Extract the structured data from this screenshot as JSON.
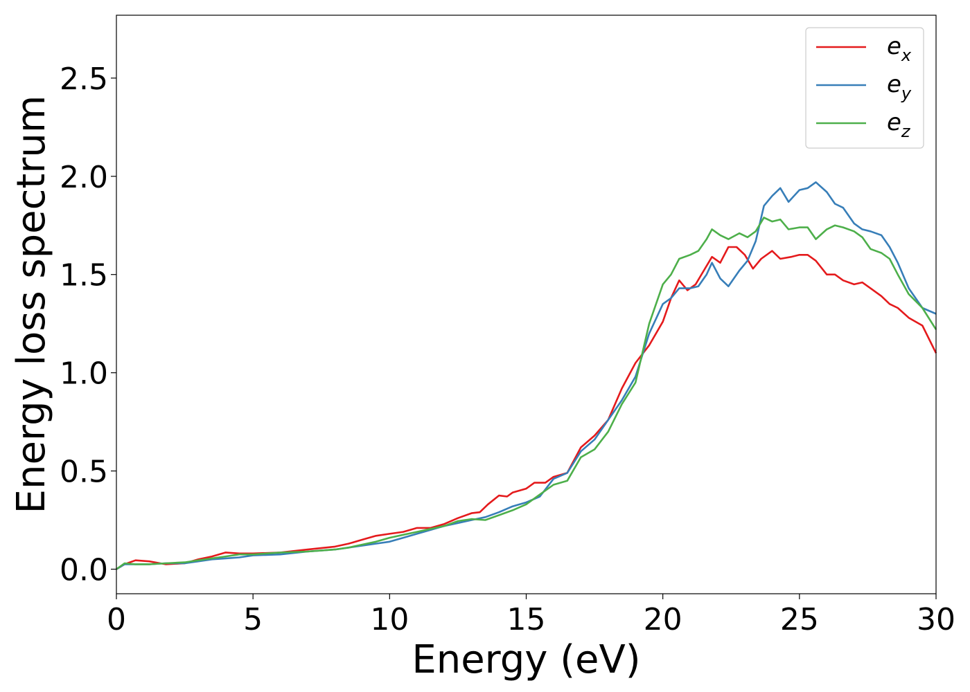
{
  "chart_data": {
    "type": "line",
    "title": "",
    "xlabel": "Energy (eV)",
    "ylabel": "Energy loss spectrum",
    "xlim": [
      0,
      30
    ],
    "ylim": [
      -0.125,
      2.82
    ],
    "xticks": [
      0,
      5,
      10,
      15,
      20,
      25,
      30
    ],
    "xtick_labels": [
      "0",
      "5",
      "10",
      "15",
      "20",
      "25",
      "30"
    ],
    "yticks": [
      0.0,
      0.5,
      1.0,
      1.5,
      2.0,
      2.5
    ],
    "ytick_labels": [
      "0.0",
      "0.5",
      "1.0",
      "1.5",
      "2.0",
      "2.5"
    ],
    "grid": false,
    "legend_position": "top-right",
    "series": [
      {
        "name": "e",
        "subscript": "x",
        "color": "#e41a1c",
        "points": [
          [
            0,
            0
          ],
          [
            0.3,
            0.025
          ],
          [
            0.7,
            0.045
          ],
          [
            1.2,
            0.04
          ],
          [
            1.8,
            0.025
          ],
          [
            2.5,
            0.03
          ],
          [
            3,
            0.05
          ],
          [
            3.5,
            0.065
          ],
          [
            4,
            0.085
          ],
          [
            4.5,
            0.08
          ],
          [
            5,
            0.08
          ],
          [
            6,
            0.085
          ],
          [
            7,
            0.1
          ],
          [
            8,
            0.115
          ],
          [
            8.5,
            0.13
          ],
          [
            9,
            0.15
          ],
          [
            9.5,
            0.17
          ],
          [
            10,
            0.18
          ],
          [
            10.5,
            0.19
          ],
          [
            11,
            0.21
          ],
          [
            11.5,
            0.21
          ],
          [
            12,
            0.23
          ],
          [
            12.5,
            0.26
          ],
          [
            13,
            0.285
          ],
          [
            13.3,
            0.29
          ],
          [
            13.6,
            0.33
          ],
          [
            14,
            0.375
          ],
          [
            14.3,
            0.37
          ],
          [
            14.5,
            0.39
          ],
          [
            15,
            0.41
          ],
          [
            15.3,
            0.44
          ],
          [
            15.7,
            0.44
          ],
          [
            16,
            0.47
          ],
          [
            16.5,
            0.49
          ],
          [
            17,
            0.62
          ],
          [
            17.5,
            0.68
          ],
          [
            18,
            0.76
          ],
          [
            18.5,
            0.92
          ],
          [
            19,
            1.05
          ],
          [
            19.5,
            1.14
          ],
          [
            20,
            1.26
          ],
          [
            20.3,
            1.38
          ],
          [
            20.6,
            1.47
          ],
          [
            20.9,
            1.42
          ],
          [
            21.2,
            1.45
          ],
          [
            21.5,
            1.52
          ],
          [
            21.8,
            1.59
          ],
          [
            22.1,
            1.56
          ],
          [
            22.4,
            1.64
          ],
          [
            22.7,
            1.64
          ],
          [
            23,
            1.6
          ],
          [
            23.3,
            1.53
          ],
          [
            23.6,
            1.58
          ],
          [
            24,
            1.62
          ],
          [
            24.3,
            1.58
          ],
          [
            24.7,
            1.59
          ],
          [
            25,
            1.6
          ],
          [
            25.3,
            1.6
          ],
          [
            25.6,
            1.57
          ],
          [
            26,
            1.5
          ],
          [
            26.3,
            1.5
          ],
          [
            26.6,
            1.47
          ],
          [
            27,
            1.45
          ],
          [
            27.3,
            1.46
          ],
          [
            27.6,
            1.43
          ],
          [
            28,
            1.39
          ],
          [
            28.3,
            1.35
          ],
          [
            28.6,
            1.33
          ],
          [
            29,
            1.28
          ],
          [
            29.5,
            1.24
          ],
          [
            30,
            1.1
          ]
        ]
      },
      {
        "name": "e",
        "subscript": "y",
        "color": "#377eb8",
        "points": [
          [
            0,
            0
          ],
          [
            0.3,
            0.025
          ],
          [
            0.7,
            0.025
          ],
          [
            1.2,
            0.025
          ],
          [
            1.8,
            0.03
          ],
          [
            2.5,
            0.03
          ],
          [
            3,
            0.04
          ],
          [
            3.5,
            0.05
          ],
          [
            4,
            0.055
          ],
          [
            4.5,
            0.06
          ],
          [
            5,
            0.07
          ],
          [
            6,
            0.075
          ],
          [
            7,
            0.09
          ],
          [
            8,
            0.1
          ],
          [
            8.5,
            0.11
          ],
          [
            9,
            0.12
          ],
          [
            9.5,
            0.13
          ],
          [
            10,
            0.14
          ],
          [
            10.5,
            0.16
          ],
          [
            11,
            0.18
          ],
          [
            11.5,
            0.2
          ],
          [
            12,
            0.22
          ],
          [
            12.5,
            0.235
          ],
          [
            13,
            0.25
          ],
          [
            13.5,
            0.265
          ],
          [
            14,
            0.29
          ],
          [
            14.5,
            0.32
          ],
          [
            15,
            0.34
          ],
          [
            15.5,
            0.37
          ],
          [
            16,
            0.46
          ],
          [
            16.5,
            0.49
          ],
          [
            17,
            0.6
          ],
          [
            17.5,
            0.66
          ],
          [
            18,
            0.76
          ],
          [
            18.5,
            0.86
          ],
          [
            19,
            0.98
          ],
          [
            19.5,
            1.2
          ],
          [
            20,
            1.35
          ],
          [
            20.3,
            1.38
          ],
          [
            20.6,
            1.43
          ],
          [
            21,
            1.43
          ],
          [
            21.3,
            1.44
          ],
          [
            21.6,
            1.5
          ],
          [
            21.8,
            1.56
          ],
          [
            22.1,
            1.48
          ],
          [
            22.4,
            1.44
          ],
          [
            22.8,
            1.52
          ],
          [
            23.1,
            1.57
          ],
          [
            23.4,
            1.67
          ],
          [
            23.7,
            1.85
          ],
          [
            24,
            1.9
          ],
          [
            24.3,
            1.94
          ],
          [
            24.6,
            1.87
          ],
          [
            25,
            1.93
          ],
          [
            25.3,
            1.94
          ],
          [
            25.6,
            1.97
          ],
          [
            26,
            1.92
          ],
          [
            26.3,
            1.86
          ],
          [
            26.6,
            1.84
          ],
          [
            27,
            1.76
          ],
          [
            27.3,
            1.73
          ],
          [
            27.6,
            1.72
          ],
          [
            28,
            1.7
          ],
          [
            28.3,
            1.64
          ],
          [
            28.6,
            1.56
          ],
          [
            29,
            1.43
          ],
          [
            29.5,
            1.33
          ],
          [
            30,
            1.3
          ]
        ]
      },
      {
        "name": "e",
        "subscript": "z",
        "color": "#4daf4a",
        "points": [
          [
            0,
            0
          ],
          [
            0.3,
            0.03
          ],
          [
            0.7,
            0.025
          ],
          [
            1.2,
            0.025
          ],
          [
            1.8,
            0.03
          ],
          [
            2.5,
            0.035
          ],
          [
            3,
            0.045
          ],
          [
            3.5,
            0.055
          ],
          [
            4,
            0.065
          ],
          [
            4.5,
            0.075
          ],
          [
            5,
            0.075
          ],
          [
            6,
            0.085
          ],
          [
            7,
            0.09
          ],
          [
            8,
            0.1
          ],
          [
            8.5,
            0.11
          ],
          [
            9,
            0.125
          ],
          [
            9.5,
            0.14
          ],
          [
            10,
            0.16
          ],
          [
            10.5,
            0.175
          ],
          [
            11,
            0.19
          ],
          [
            11.5,
            0.205
          ],
          [
            12,
            0.22
          ],
          [
            12.5,
            0.245
          ],
          [
            13,
            0.255
          ],
          [
            13.5,
            0.25
          ],
          [
            14,
            0.275
          ],
          [
            14.5,
            0.3
          ],
          [
            15,
            0.33
          ],
          [
            15.5,
            0.38
          ],
          [
            16,
            0.43
          ],
          [
            16.5,
            0.45
          ],
          [
            17,
            0.57
          ],
          [
            17.5,
            0.61
          ],
          [
            18,
            0.7
          ],
          [
            18.5,
            0.84
          ],
          [
            19,
            0.95
          ],
          [
            19.5,
            1.25
          ],
          [
            20,
            1.45
          ],
          [
            20.3,
            1.5
          ],
          [
            20.6,
            1.58
          ],
          [
            21,
            1.6
          ],
          [
            21.3,
            1.62
          ],
          [
            21.6,
            1.68
          ],
          [
            21.8,
            1.73
          ],
          [
            22.1,
            1.7
          ],
          [
            22.4,
            1.68
          ],
          [
            22.8,
            1.71
          ],
          [
            23.1,
            1.69
          ],
          [
            23.4,
            1.72
          ],
          [
            23.7,
            1.79
          ],
          [
            24,
            1.77
          ],
          [
            24.3,
            1.78
          ],
          [
            24.6,
            1.73
          ],
          [
            25,
            1.74
          ],
          [
            25.3,
            1.74
          ],
          [
            25.6,
            1.68
          ],
          [
            26,
            1.73
          ],
          [
            26.3,
            1.75
          ],
          [
            26.6,
            1.74
          ],
          [
            27,
            1.72
          ],
          [
            27.3,
            1.69
          ],
          [
            27.6,
            1.63
          ],
          [
            28,
            1.61
          ],
          [
            28.3,
            1.58
          ],
          [
            28.6,
            1.5
          ],
          [
            29,
            1.4
          ],
          [
            29.5,
            1.33
          ],
          [
            30,
            1.22
          ]
        ]
      }
    ]
  }
}
